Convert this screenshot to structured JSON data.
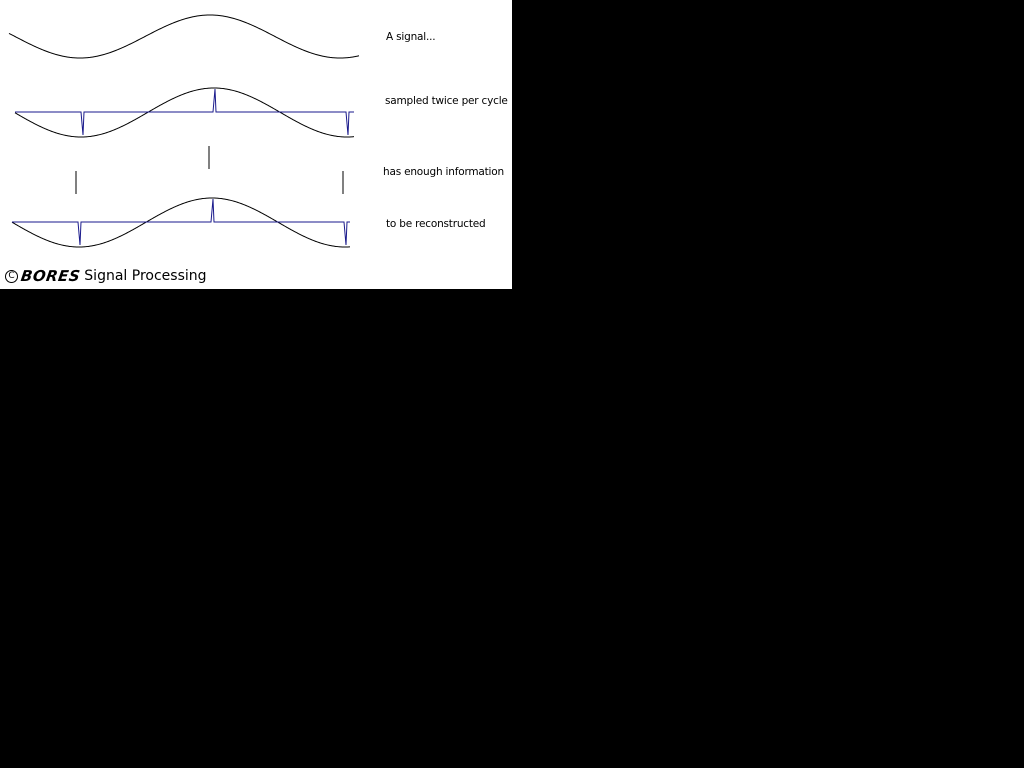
{
  "captions": {
    "signal": "A signal...",
    "sampled": "sampled twice per cycle",
    "information": "has enough information",
    "reconstructed": "to be reconstructed"
  },
  "logo": {
    "copyright_symbol": "C",
    "brand": "BORES",
    "rest": "Signal Processing"
  },
  "colors": {
    "background": "#000000",
    "panel": "#ffffff",
    "signal": "#000000",
    "samples": "#1a1a8c"
  },
  "signal": {
    "cycles_shown": 1,
    "samples_per_cycle": 2
  }
}
